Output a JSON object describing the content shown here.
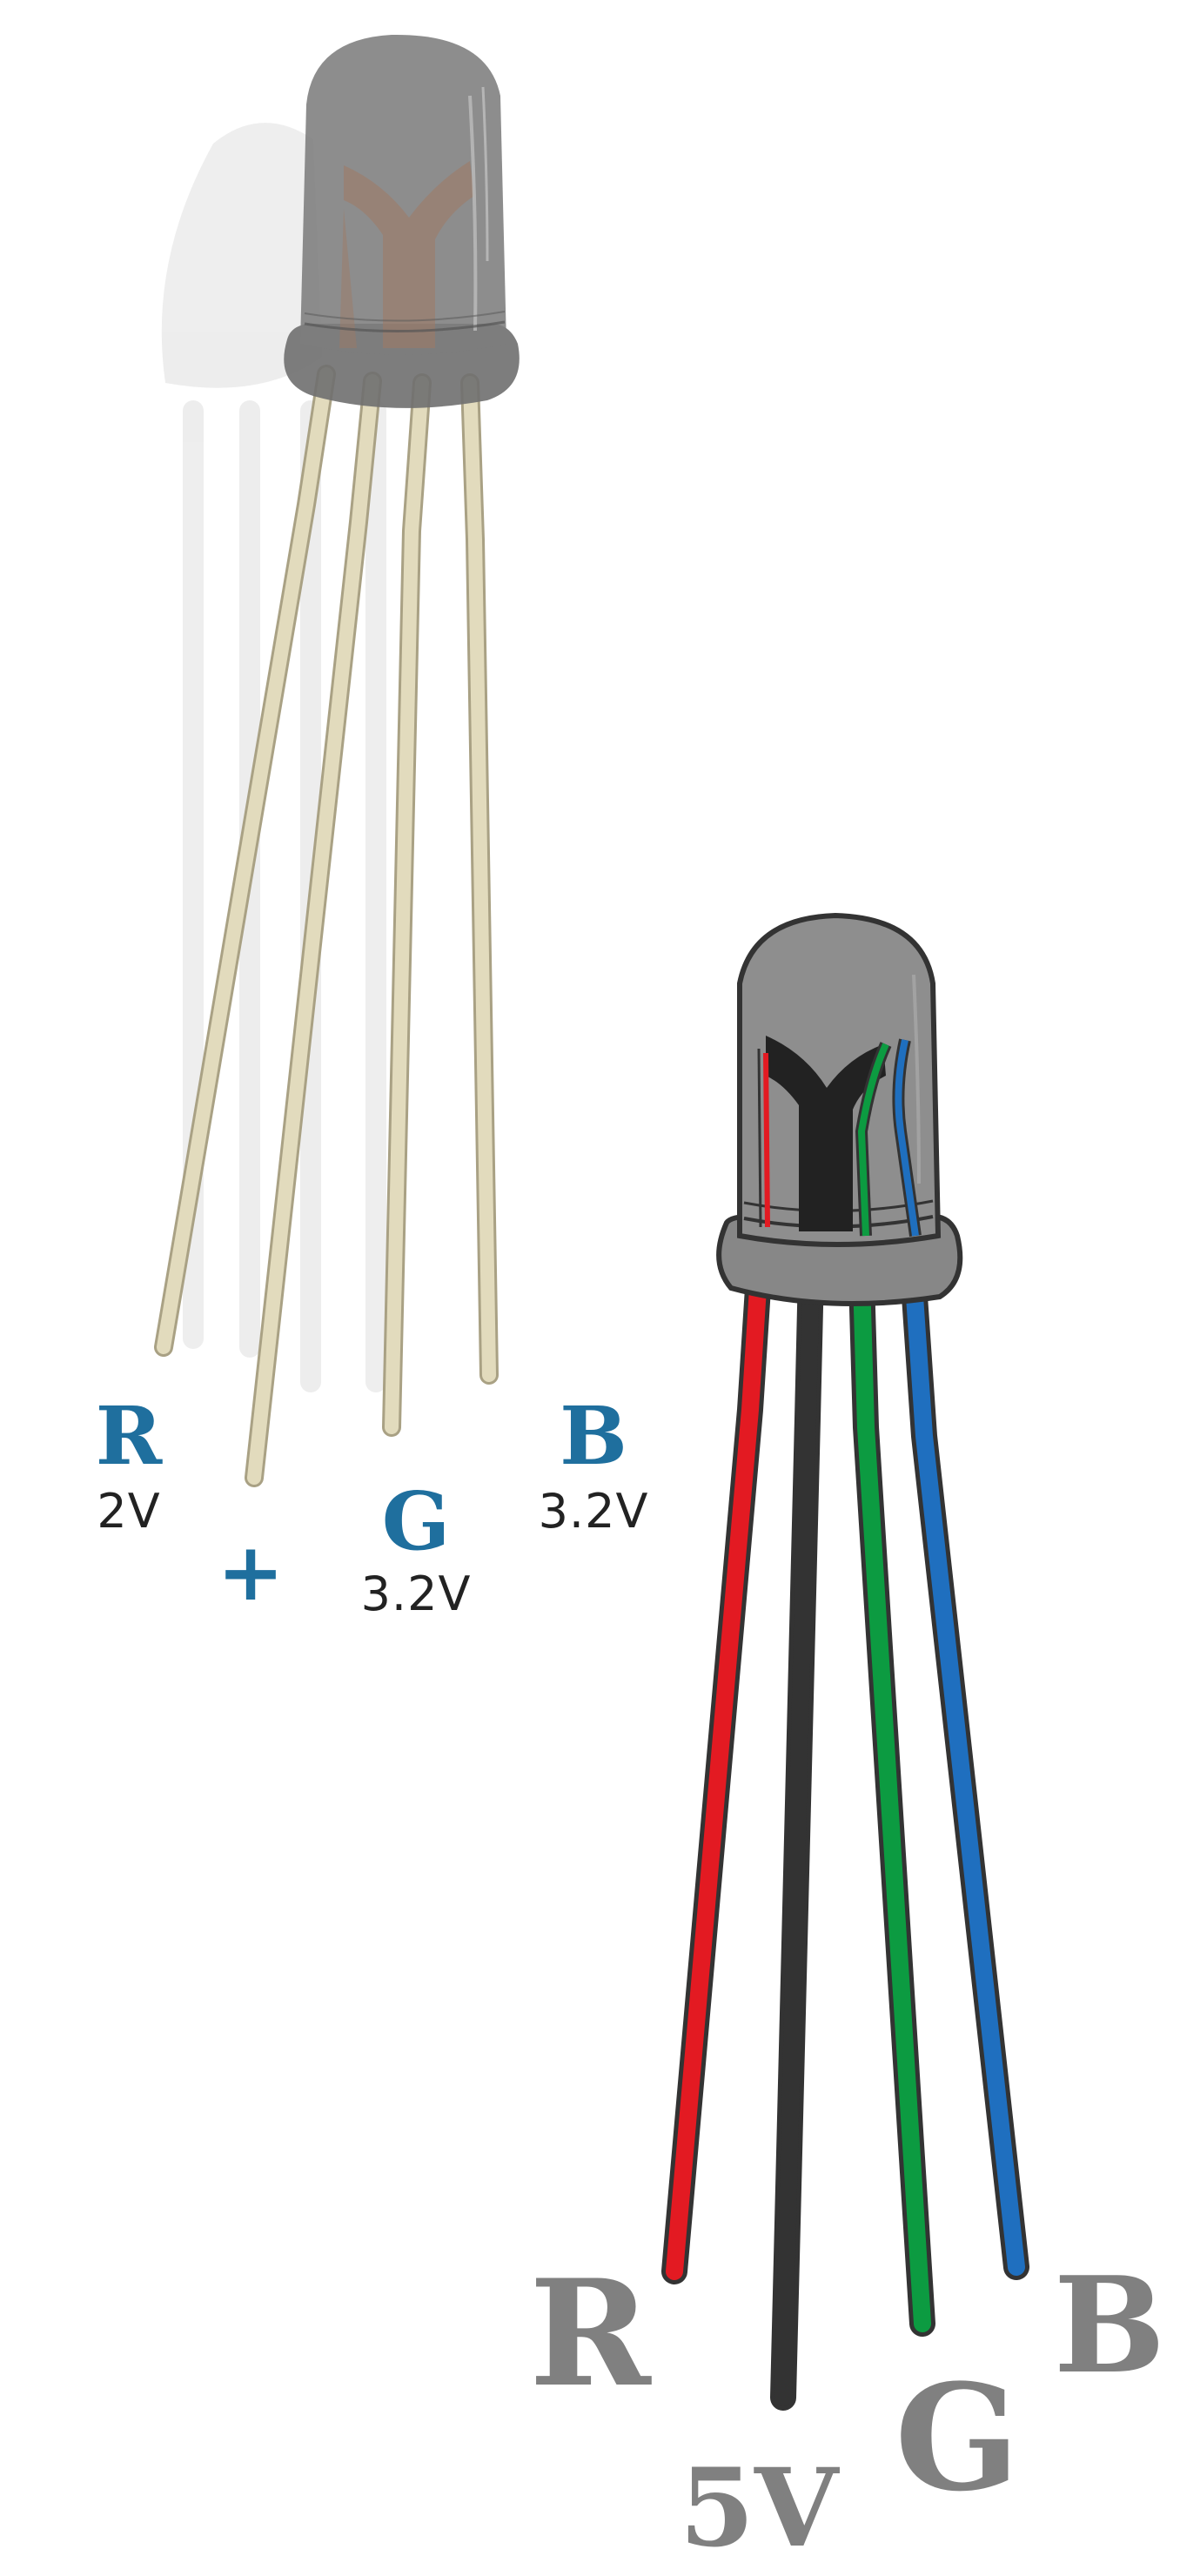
{
  "top_led": {
    "pins": [
      {
        "letter": "R",
        "voltage": "2V"
      },
      {
        "letter": "+",
        "voltage": ""
      },
      {
        "letter": "G",
        "voltage": "3.2V"
      },
      {
        "letter": "B",
        "voltage": "3.2V"
      }
    ],
    "label_color": "#1f6f9e",
    "voltage_color": "#222222",
    "lead_color": "#e2dbbd",
    "lead_edge_color": "#a9a184",
    "body_color": "#7a7a7a",
    "shadow_color": "#e6e6e6"
  },
  "bottom_led": {
    "wires": [
      {
        "letter": "R",
        "color": "#e31a22"
      },
      {
        "letter": "5V",
        "color": "#333333"
      },
      {
        "letter": "G",
        "color": "#0c9b41"
      },
      {
        "letter": "B",
        "color": "#1f6fbf"
      }
    ],
    "label_color": "#808080",
    "outline_color": "#333333",
    "body_color": "#888888"
  }
}
